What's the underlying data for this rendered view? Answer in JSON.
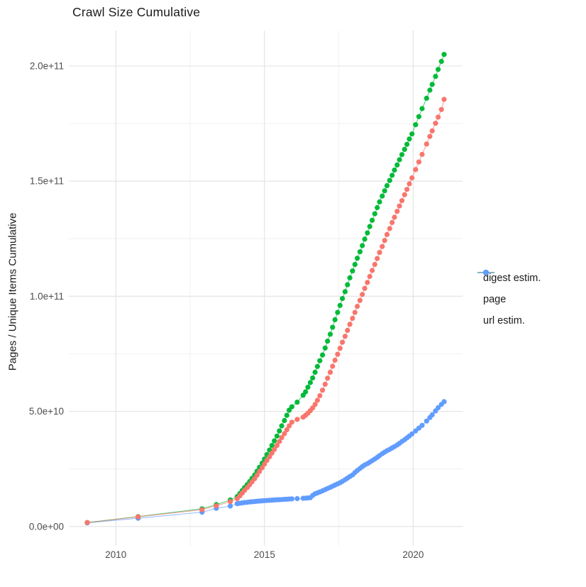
{
  "chart_data": {
    "type": "scatter",
    "title": "Crawl Size Cumulative",
    "xlabel": "",
    "ylabel": "Pages / Unique Items Cumulative",
    "units": "values are cumulative item counts in billions (1e9)",
    "grid": true,
    "legend_position": "right",
    "x_domain": [
      2008.42,
      2021.66
    ],
    "y_domain": [
      -8.4,
      215.4
    ],
    "x_ticks": {
      "values": [
        2010,
        2015,
        2020
      ],
      "labels": [
        "2010",
        "2015",
        "2020"
      ],
      "minor": [
        2012.5,
        2017.5
      ]
    },
    "y_ticks": {
      "values": [
        0,
        50,
        100,
        150,
        200
      ],
      "labels": [
        "0.0e+00",
        "5.0e+10",
        "1.0e+11",
        "1.5e+11",
        "2.0e+11"
      ],
      "minor": [
        25,
        75,
        125,
        175
      ]
    },
    "x": [
      2009.04,
      2010.75,
      2012.9,
      2013.38,
      2013.85,
      2014.08,
      2014.17,
      2014.25,
      2014.33,
      2014.42,
      2014.5,
      2014.58,
      2014.67,
      2014.75,
      2014.83,
      2014.92,
      2015.0,
      2015.08,
      2015.17,
      2015.25,
      2015.33,
      2015.42,
      2015.5,
      2015.58,
      2015.67,
      2015.75,
      2015.83,
      2015.92,
      2016.1,
      2016.3,
      2016.38,
      2016.46,
      2016.54,
      2016.62,
      2016.7,
      2016.78,
      2016.86,
      2016.95,
      2017.04,
      2017.12,
      2017.21,
      2017.29,
      2017.37,
      2017.46,
      2017.54,
      2017.62,
      2017.71,
      2017.79,
      2017.87,
      2017.96,
      2018.04,
      2018.12,
      2018.21,
      2018.29,
      2018.37,
      2018.46,
      2018.54,
      2018.62,
      2018.71,
      2018.79,
      2018.87,
      2018.96,
      2019.04,
      2019.12,
      2019.21,
      2019.29,
      2019.37,
      2019.46,
      2019.54,
      2019.62,
      2019.71,
      2019.79,
      2019.87,
      2019.96,
      2020.08,
      2020.19,
      2020.3,
      2020.45,
      2020.56,
      2020.64,
      2020.75,
      2020.84,
      2020.95,
      2021.04
    ],
    "series": [
      {
        "name": "digest estim.",
        "color": "#F8766D",
        "values": [
          1.7,
          4.2,
          7.3,
          9.0,
          10.8,
          12.1,
          13.3,
          14.5,
          15.7,
          16.9,
          18.1,
          19.4,
          20.8,
          22.3,
          23.9,
          25.5,
          27.1,
          28.7,
          30.3,
          31.9,
          33.5,
          35.2,
          36.9,
          38.6,
          40.3,
          42.0,
          43.7,
          45.3,
          46.5,
          47.5,
          48.3,
          49.2,
          50.3,
          51.5,
          53.0,
          54.8,
          56.8,
          59.2,
          61.8,
          64.4,
          67.0,
          69.6,
          72.2,
          74.8,
          77.4,
          80.0,
          82.6,
          85.2,
          87.8,
          90.4,
          93.0,
          95.6,
          98.2,
          100.8,
          103.4,
          106.0,
          108.6,
          111.2,
          113.8,
          116.4,
          119.0,
          121.6,
          124.2,
          126.8,
          129.4,
          132.0,
          134.3,
          136.9,
          139.2,
          141.5,
          144.1,
          146.4,
          148.8,
          151.4,
          155.0,
          158.3,
          161.6,
          166.1,
          169.4,
          171.8,
          175.1,
          177.8,
          181.1,
          185.5
        ]
      },
      {
        "name": "page",
        "color": "#00BA38",
        "values": [
          1.7,
          4.3,
          7.7,
          9.5,
          11.5,
          13.0,
          14.3,
          15.6,
          16.9,
          18.2,
          19.5,
          20.9,
          22.4,
          24.0,
          25.7,
          27.5,
          29.3,
          31.2,
          33.2,
          35.2,
          37.2,
          39.3,
          41.5,
          43.7,
          46.0,
          48.3,
          50.5,
          52.0,
          54.0,
          57.0,
          58.5,
          60.5,
          62.5,
          64.5,
          67.0,
          69.5,
          72.0,
          74.5,
          77.5,
          80.5,
          83.5,
          86.5,
          89.8,
          93.0,
          96.0,
          99.0,
          102.0,
          105.0,
          108.0,
          111.0,
          113.8,
          116.5,
          119.3,
          122.0,
          124.8,
          127.5,
          130.3,
          133.0,
          135.8,
          138.5,
          141.0,
          143.5,
          145.8,
          148.0,
          150.3,
          152.5,
          154.8,
          157.0,
          159.3,
          161.5,
          163.8,
          166.0,
          168.3,
          170.5,
          174.5,
          178.0,
          181.5,
          186.0,
          189.5,
          192.0,
          195.5,
          198.5,
          202.0,
          205.0
        ]
      },
      {
        "name": "url estim.",
        "color": "#619CFF",
        "values": [
          1.55,
          3.6,
          6.2,
          7.9,
          8.9,
          9.9,
          10.1,
          10.25,
          10.4,
          10.5,
          10.65,
          10.75,
          10.85,
          10.95,
          11.05,
          11.15,
          11.25,
          11.3,
          11.4,
          11.45,
          11.5,
          11.6,
          11.65,
          11.7,
          11.8,
          11.85,
          11.9,
          12.0,
          12.1,
          12.25,
          12.3,
          12.4,
          12.5,
          13.5,
          14.2,
          14.6,
          15.0,
          15.5,
          16.0,
          16.5,
          17.0,
          17.5,
          18.0,
          18.5,
          19.0,
          19.6,
          20.3,
          21.0,
          21.7,
          22.4,
          23.4,
          24.3,
          25.2,
          26.0,
          26.7,
          27.3,
          27.9,
          28.6,
          29.3,
          30.0,
          30.8,
          31.6,
          32.3,
          32.9,
          33.5,
          34.1,
          34.7,
          35.4,
          36.1,
          36.9,
          37.7,
          38.5,
          39.3,
          40.2,
          41.5,
          42.7,
          43.9,
          45.8,
          47.3,
          48.5,
          50.2,
          51.6,
          53.0,
          54.2
        ]
      }
    ],
    "style": {
      "grid_major_color": "#e4e4e4",
      "grid_minor_color": "#efefef",
      "tick_label_color": "#4d4d4d",
      "text_color": "#1a1a1a",
      "background": "#ffffff"
    }
  }
}
